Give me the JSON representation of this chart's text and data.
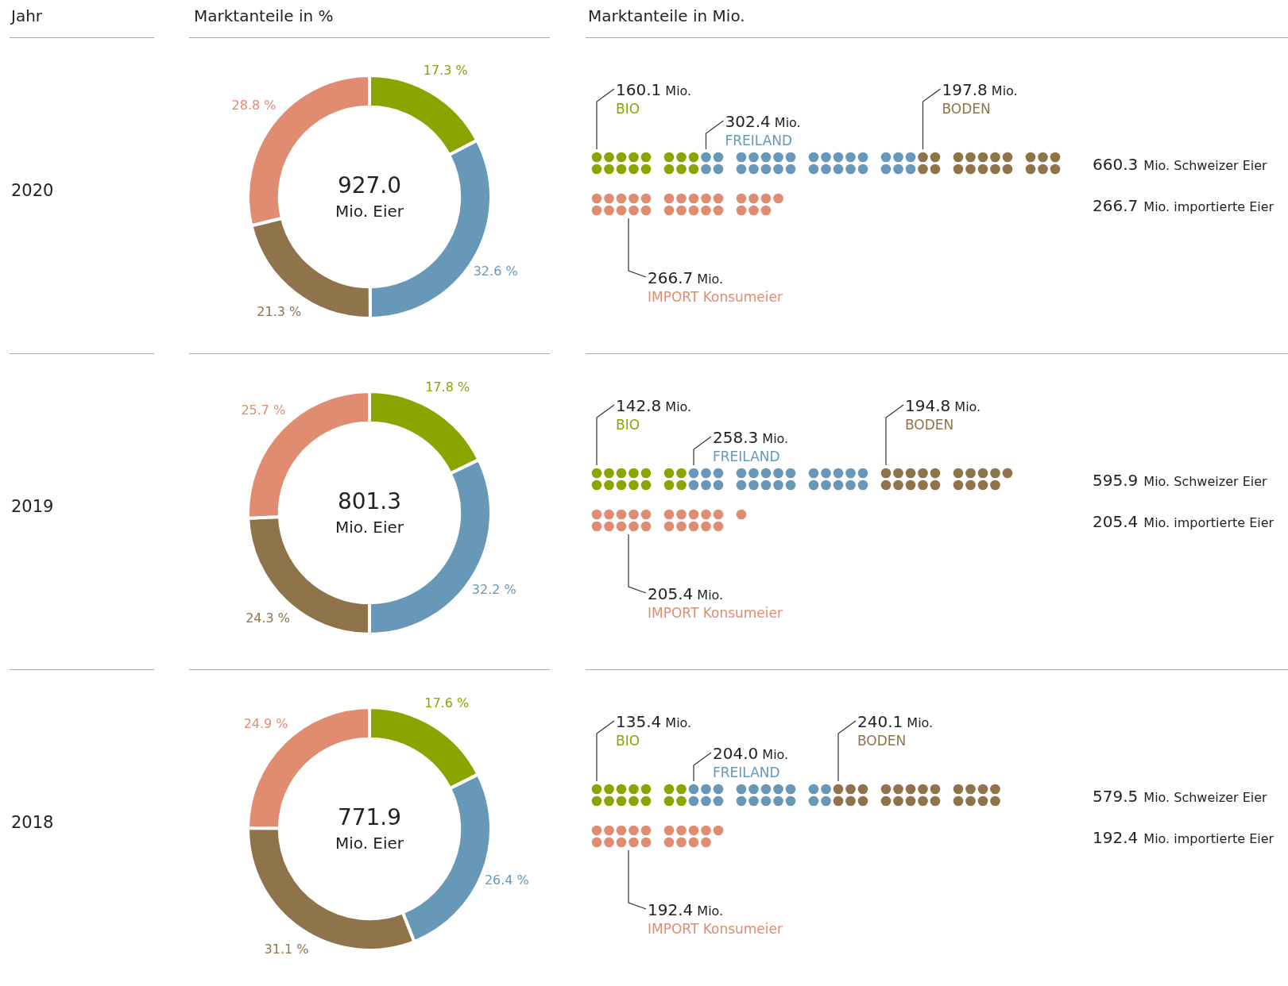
{
  "chart_data": [
    {
      "type": "other",
      "annotations": [
        "Jahr",
        "Marktanteile in %",
        "Marktanteile in Mio."
      ]
    },
    {
      "type": "donut",
      "title": "2020",
      "categories": [
        null,
        null,
        null,
        null
      ],
      "values": [
        17.3,
        32.6,
        21.3,
        28.8
      ],
      "colors": [
        "#8aa400",
        "#6798b8",
        "#8f734b",
        "#e08c70"
      ],
      "value_labels": [
        "17.3 %",
        "32.6 %",
        "21.3 %",
        "28.8 %"
      ],
      "annotations": [
        "927.0",
        "Mio. Eier"
      ]
    },
    {
      "type": "other",
      "categories": [
        "BIO",
        "FREILAND",
        "BODEN",
        "IMPORT Konsumeier"
      ],
      "values": [
        160.1,
        302.4,
        197.8,
        266.7
      ],
      "colors": [
        "#8aa400",
        "#6798b8",
        "#8f734b",
        "#e08c70"
      ],
      "value_labels": [
        "160.1 Mio.",
        "302.4 Mio.",
        "197.8 Mio.",
        "266.7 Mio."
      ],
      "annotations": [
        "660.3 Mio. Schweizer Eier",
        "266.7 Mio. importierte Eier"
      ]
    },
    {
      "type": "donut",
      "title": "2019",
      "categories": [
        null,
        null,
        null,
        null
      ],
      "values": [
        17.8,
        32.2,
        24.3,
        25.7
      ],
      "colors": [
        "#8aa400",
        "#6798b8",
        "#8f734b",
        "#e08c70"
      ],
      "value_labels": [
        "17.8 %",
        "32.2 %",
        "24.3 %",
        "25.7 %"
      ],
      "annotations": [
        "801.3",
        "Mio. Eier"
      ]
    },
    {
      "type": "other",
      "categories": [
        "BIO",
        "FREILAND",
        "BODEN",
        "IMPORT Konsumeier"
      ],
      "values": [
        142.8,
        258.3,
        194.8,
        205.4
      ],
      "colors": [
        "#8aa400",
        "#6798b8",
        "#8f734b",
        "#e08c70"
      ],
      "value_labels": [
        "142.8 Mio.",
        "258.3 Mio.",
        "194.8 Mio.",
        "205.4 Mio."
      ],
      "annotations": [
        "595.9 Mio. Schweizer Eier",
        "205.4 Mio. importierte Eier"
      ]
    },
    {
      "type": "donut",
      "title": "2018",
      "categories": [
        null,
        null,
        null,
        null
      ],
      "values": [
        17.6,
        26.4,
        31.1,
        24.9
      ],
      "colors": [
        "#8aa400",
        "#6798b8",
        "#8f734b",
        "#e08c70"
      ],
      "value_labels": [
        "17.6 %",
        "26.4 %",
        "31.1 %",
        "24.9 %"
      ],
      "annotations": [
        "771.9",
        "Mio. Eier"
      ]
    },
    {
      "type": "other",
      "categories": [
        "BIO",
        "FREILAND",
        "BODEN",
        "IMPORT Konsumeier"
      ],
      "values": [
        135.4,
        204.0,
        240.1,
        192.4
      ],
      "colors": [
        "#8aa400",
        "#6798b8",
        "#8f734b",
        "#e08c70"
      ],
      "value_labels": [
        "135.4 Mio.",
        "204.0 Mio.",
        "240.1 Mio.",
        "192.4 Mio."
      ],
      "annotations": [
        "579.5 Mio. Schweizer Eier",
        "192.4 Mio. importierte Eier"
      ]
    }
  ]
}
